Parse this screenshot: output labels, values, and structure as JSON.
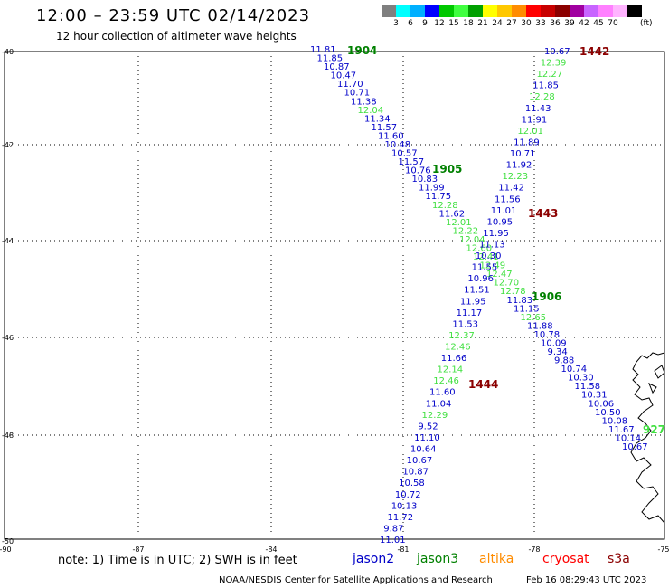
{
  "header": {
    "title": "12:00 – 23:59 UTC 02/14/2023",
    "subtitle": "12 hour collection of altimeter wave heights"
  },
  "colorbar": {
    "colors": [
      "#7f7f7f",
      "#00ffff",
      "#00b0ff",
      "#0000ff",
      "#00c800",
      "#40ff40",
      "#00a000",
      "#ffff00",
      "#ffc800",
      "#ff8c00",
      "#ff0000",
      "#c80000",
      "#8b0000",
      "#a000a0",
      "#c864ff",
      "#ff80ff",
      "#ffb4ff",
      "#000000"
    ],
    "labels": [
      "3",
      "6",
      "9",
      "12",
      "15",
      "18",
      "21",
      "24",
      "27",
      "30",
      "33",
      "36",
      "39",
      "42",
      "45",
      "70"
    ],
    "unit": "(ft)"
  },
  "axes": {
    "lat_labels": [
      "-40",
      "-42",
      "-44",
      "-46",
      "-48",
      "-50"
    ],
    "lon_labels": [
      "-90",
      "-87",
      "-84",
      "-81",
      "-78",
      "-75"
    ]
  },
  "satellite_colors": {
    "jason2": "#0000c8",
    "jason3": "#008000",
    "altika": "#ff8c00",
    "cryosat": "#ff0000",
    "s3a": "#8b0000",
    "light": "#40e040"
  },
  "passes": [
    {
      "id": "1904",
      "color": "#008000"
    },
    {
      "id": "1905",
      "color": "#008000"
    },
    {
      "id": "1906",
      "color": "#008000"
    },
    {
      "id": "1442",
      "color": "#8b0000"
    },
    {
      "id": "1443",
      "color": "#8b0000"
    },
    {
      "id": "1444",
      "color": "#8b0000"
    },
    {
      "id": "927",
      "color": "#40e040"
    }
  ],
  "track_a": [
    {
      "v": "11.81",
      "c": "b"
    },
    {
      "v": "11.85",
      "c": "b"
    },
    {
      "v": "10.87",
      "c": "b"
    },
    {
      "v": "10.47",
      "c": "b"
    },
    {
      "v": "11.70",
      "c": "b"
    },
    {
      "v": "10.71",
      "c": "b"
    },
    {
      "v": "11.38",
      "c": "b"
    },
    {
      "v": "12.04",
      "c": "g"
    },
    {
      "v": "11.34",
      "c": "b"
    },
    {
      "v": "11.57",
      "c": "b"
    },
    {
      "v": "11.60",
      "c": "b"
    },
    {
      "v": "10.48",
      "c": "b"
    },
    {
      "v": "10.57",
      "c": "b"
    },
    {
      "v": "11.57",
      "c": "b"
    },
    {
      "v": "10.76",
      "c": "b"
    },
    {
      "v": "10.83",
      "c": "b"
    },
    {
      "v": "11.99",
      "c": "b"
    },
    {
      "v": "11.75",
      "c": "b"
    },
    {
      "v": "12.28",
      "c": "g"
    },
    {
      "v": "11.62",
      "c": "b"
    },
    {
      "v": "12.01",
      "c": "g"
    },
    {
      "v": "12.22",
      "c": "g"
    },
    {
      "v": "12.04",
      "c": "g"
    },
    {
      "v": "12.60",
      "c": "g"
    },
    {
      "v": "12.41",
      "c": "g"
    },
    {
      "v": "12.49",
      "c": "g"
    },
    {
      "v": "12.47",
      "c": "g"
    },
    {
      "v": "12.70",
      "c": "g"
    },
    {
      "v": "12.78",
      "c": "g"
    },
    {
      "v": "11.83",
      "c": "b"
    },
    {
      "v": "11.15",
      "c": "b"
    },
    {
      "v": "12.65",
      "c": "g"
    },
    {
      "v": "11.88",
      "c": "b"
    },
    {
      "v": "10.78",
      "c": "b"
    },
    {
      "v": "10.09",
      "c": "b"
    },
    {
      "v": "9.34",
      "c": "b"
    },
    {
      "v": "9.88",
      "c": "b"
    },
    {
      "v": "10.74",
      "c": "b"
    },
    {
      "v": "10.30",
      "c": "b"
    },
    {
      "v": "11.58",
      "c": "b"
    },
    {
      "v": "10.31",
      "c": "b"
    },
    {
      "v": "10.06",
      "c": "b"
    },
    {
      "v": "10.50",
      "c": "b"
    },
    {
      "v": "10.08",
      "c": "b"
    },
    {
      "v": "11.67",
      "c": "b"
    },
    {
      "v": "10.14",
      "c": "b"
    },
    {
      "v": "10.67",
      "c": "b"
    }
  ],
  "track_b": [
    {
      "v": "10.67",
      "c": "b"
    },
    {
      "v": "12.39",
      "c": "g"
    },
    {
      "v": "12.27",
      "c": "g"
    },
    {
      "v": "11.85",
      "c": "b"
    },
    {
      "v": "12.28",
      "c": "g"
    },
    {
      "v": "11.43",
      "c": "b"
    },
    {
      "v": "11.91",
      "c": "b"
    },
    {
      "v": "12.01",
      "c": "g"
    },
    {
      "v": "11.89",
      "c": "b"
    },
    {
      "v": "10.71",
      "c": "b"
    },
    {
      "v": "11.92",
      "c": "b"
    },
    {
      "v": "12.23",
      "c": "g"
    },
    {
      "v": "11.42",
      "c": "b"
    },
    {
      "v": "11.56",
      "c": "b"
    },
    {
      "v": "11.01",
      "c": "b"
    },
    {
      "v": "10.95",
      "c": "b"
    },
    {
      "v": "11.95",
      "c": "b"
    },
    {
      "v": "11.13",
      "c": "b"
    },
    {
      "v": "10.30",
      "c": "b"
    },
    {
      "v": "11.55",
      "c": "b"
    },
    {
      "v": "10.96",
      "c": "b"
    },
    {
      "v": "11.51",
      "c": "b"
    },
    {
      "v": "11.95",
      "c": "b"
    },
    {
      "v": "11.17",
      "c": "b"
    },
    {
      "v": "11.53",
      "c": "b"
    },
    {
      "v": "12.37",
      "c": "g"
    },
    {
      "v": "12.46",
      "c": "g"
    },
    {
      "v": "11.66",
      "c": "b"
    },
    {
      "v": "12.14",
      "c": "g"
    },
    {
      "v": "12.46",
      "c": "g"
    },
    {
      "v": "11.60",
      "c": "b"
    },
    {
      "v": "11.04",
      "c": "b"
    },
    {
      "v": "12.29",
      "c": "g"
    },
    {
      "v": "9.52",
      "c": "b"
    },
    {
      "v": "11.10",
      "c": "b"
    },
    {
      "v": "10.64",
      "c": "b"
    },
    {
      "v": "10.67",
      "c": "b"
    },
    {
      "v": "10.87",
      "c": "b"
    },
    {
      "v": "10.58",
      "c": "b"
    },
    {
      "v": "10.72",
      "c": "b"
    },
    {
      "v": "10.13",
      "c": "b"
    },
    {
      "v": "11.72",
      "c": "b"
    },
    {
      "v": "9.87",
      "c": "b"
    },
    {
      "v": "11.01",
      "c": "b"
    }
  ],
  "legend": {
    "note": "note:  1) Time is in UTC;  2) SWH is in feet",
    "jason2": "jason2",
    "jason3": "jason3",
    "altika": "altika",
    "cryosat": "cryosat",
    "s3a": "s3a"
  },
  "footer": {
    "center": "NOAA/NESDIS Center for Satellite Applications and Research",
    "timestamp": "Feb 16 08:29:43 UTC 2023"
  }
}
